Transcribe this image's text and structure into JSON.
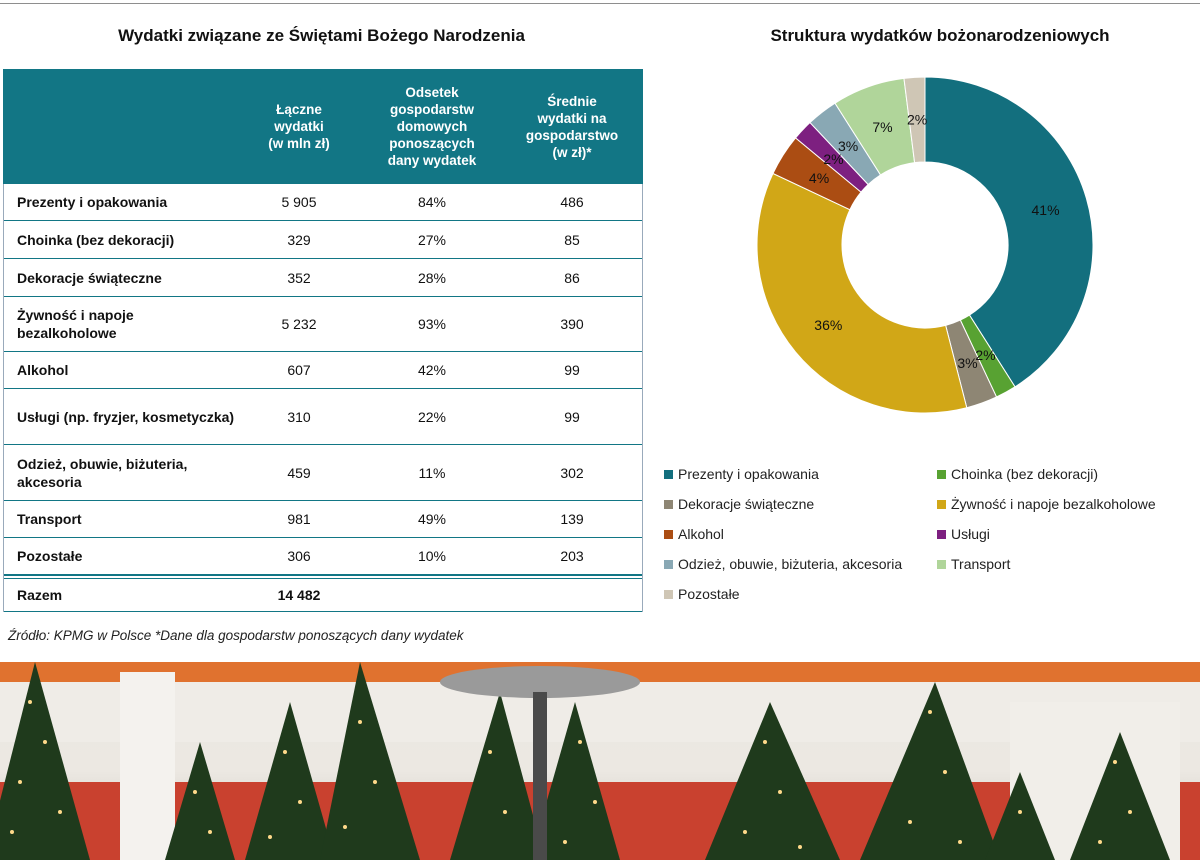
{
  "table": {
    "title": "Wydatki związane ze Świętami Bożego Narodzenia",
    "headers": [
      "",
      "Łączne\nwydatki\n(w mln zł)",
      "Odsetek\ngospodarstw\ndomowych\nponoszących\ndany wydatek",
      "Średnie\nwydatki na\ngospodarstwo\n(w zł)*"
    ],
    "rows": [
      {
        "category": "Prezenty i opakowania",
        "total": "5 905",
        "share": "84%",
        "avg": "486"
      },
      {
        "category": "Choinka (bez dekoracji)",
        "total": "329",
        "share": "27%",
        "avg": "85"
      },
      {
        "category": "Dekoracje świąteczne",
        "total": "352",
        "share": "28%",
        "avg": "86"
      },
      {
        "category": "Żywność i napoje bezalkoholowe",
        "total": "5 232",
        "share": "93%",
        "avg": "390"
      },
      {
        "category": "Alkohol",
        "total": "607",
        "share": "42%",
        "avg": "99"
      },
      {
        "category": "Usługi (np. fryzjer, kosmetyczka)",
        "total": "310",
        "share": "22%",
        "avg": "99"
      },
      {
        "category": "Odzież, obuwie, biżuteria, akcesoria",
        "total": "459",
        "share": "11%",
        "avg": "302"
      },
      {
        "category": "Transport",
        "total": "981",
        "share": "49%",
        "avg": "139"
      },
      {
        "category": "Pozostałe",
        "total": "306",
        "share": "10%",
        "avg": "203"
      }
    ],
    "total": {
      "category": "Razem",
      "total": "14 482"
    }
  },
  "source": "Źródło: KPMG w Polsce *Dane dla gospodarstw ponoszących dany wydatek",
  "chart_data": {
    "type": "pie",
    "title": "Struktura wydatków bożonarodzeniowych",
    "donut": true,
    "legend_position": "bottom",
    "categories": [
      "Prezenty i opakowania",
      "Choinka (bez dekoracji)",
      "Dekoracje świąteczne",
      "Żywność i napoje bezalkoholowe",
      "Alkohol",
      "Usługi",
      "Odzież, obuwie, biżuteria, akcesoria",
      "Transport",
      "Pozostałe"
    ],
    "values": [
      41,
      2,
      3,
      36,
      4,
      2,
      3,
      7,
      2
    ],
    "data_labels": [
      "41%",
      "2%",
      "3%",
      "36%",
      "4%",
      "2%",
      "3%",
      "7%",
      "2%"
    ],
    "colors": [
      "#136f7e",
      "#58a232",
      "#8e8674",
      "#d1a717",
      "#ab4d13",
      "#7d2080",
      "#89a8b4",
      "#b0d59a",
      "#cfc6b5"
    ]
  },
  "colors": {
    "table_header": "#127685"
  }
}
